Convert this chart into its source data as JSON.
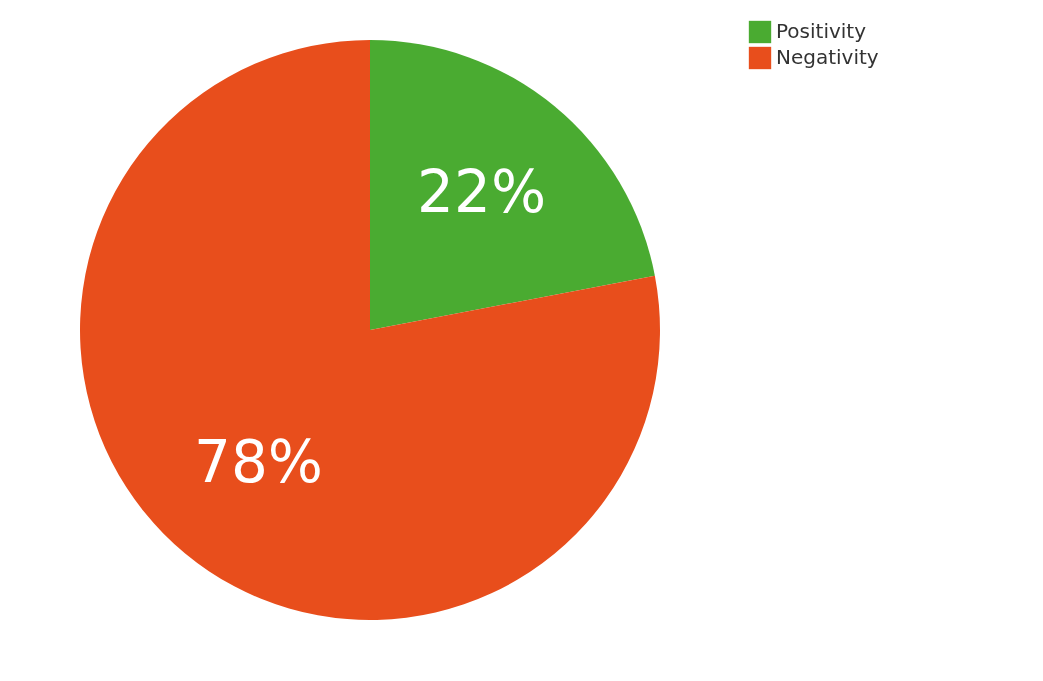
{
  "chart_data": {
    "type": "pie",
    "categories": [
      "Positivity",
      "Negativity"
    ],
    "values": [
      22,
      78
    ],
    "colors": [
      "#4aab31",
      "#e84e1c"
    ],
    "value_labels": [
      "22%",
      "78%"
    ],
    "legend": "right"
  }
}
